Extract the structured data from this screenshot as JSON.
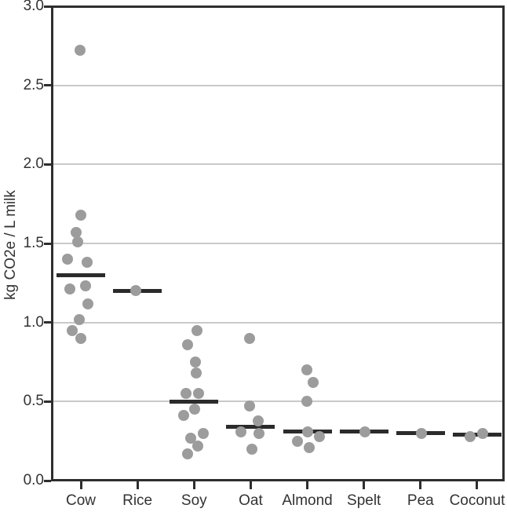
{
  "chart_data": {
    "type": "scatter",
    "subtype": "strip plot with median lines per category",
    "title": "",
    "xlabel": "",
    "ylabel": "kg CO2e / L milk",
    "ylim": [
      0.0,
      3.0
    ],
    "grid": "horizontal gridlines every 0.5, light gray",
    "legend": "none",
    "yticks": [
      {
        "v": 0.0,
        "label": "0.0"
      },
      {
        "v": 0.5,
        "label": "0.5"
      },
      {
        "v": 1.0,
        "label": "1.0"
      },
      {
        "v": 1.5,
        "label": "1.5"
      },
      {
        "v": 2.0,
        "label": "2.0"
      },
      {
        "v": 2.5,
        "label": "2.5"
      },
      {
        "v": 3.0,
        "label": "3.0"
      }
    ],
    "categories": [
      "Cow",
      "Rice",
      "Soy",
      "Oat",
      "Almond",
      "Spelt",
      "Pea",
      "Coconut"
    ],
    "series": [
      {
        "name": "Cow",
        "median": 1.3,
        "points": [
          {
            "v": 2.72,
            "dx": -1
          },
          {
            "v": 1.68,
            "dx": 0
          },
          {
            "v": 1.57,
            "dx": -6
          },
          {
            "v": 1.51,
            "dx": -4
          },
          {
            "v": 1.4,
            "dx": -17
          },
          {
            "v": 1.38,
            "dx": 8
          },
          {
            "v": 1.23,
            "dx": 6
          },
          {
            "v": 1.21,
            "dx": -14
          },
          {
            "v": 1.12,
            "dx": 9
          },
          {
            "v": 1.02,
            "dx": -2
          },
          {
            "v": 0.95,
            "dx": -11
          },
          {
            "v": 0.9,
            "dx": 0
          }
        ]
      },
      {
        "name": "Rice",
        "median": 1.2,
        "points": [
          {
            "v": 1.2,
            "dx": -2
          }
        ]
      },
      {
        "name": "Soy",
        "median": 0.5,
        "points": [
          {
            "v": 0.95,
            "dx": 4
          },
          {
            "v": 0.86,
            "dx": -8
          },
          {
            "v": 0.75,
            "dx": 2
          },
          {
            "v": 0.68,
            "dx": 3
          },
          {
            "v": 0.55,
            "dx": -10
          },
          {
            "v": 0.55,
            "dx": 6
          },
          {
            "v": 0.45,
            "dx": 1
          },
          {
            "v": 0.41,
            "dx": -13
          },
          {
            "v": 0.3,
            "dx": 12
          },
          {
            "v": 0.27,
            "dx": -4
          },
          {
            "v": 0.22,
            "dx": 5
          },
          {
            "v": 0.17,
            "dx": -8
          }
        ]
      },
      {
        "name": "Oat",
        "median": 0.34,
        "points": [
          {
            "v": 0.9,
            "dx": -1
          },
          {
            "v": 0.47,
            "dx": -1
          },
          {
            "v": 0.38,
            "dx": 10
          },
          {
            "v": 0.31,
            "dx": -12
          },
          {
            "v": 0.3,
            "dx": 11
          },
          {
            "v": 0.2,
            "dx": 2
          }
        ]
      },
      {
        "name": "Almond",
        "median": 0.31,
        "points": [
          {
            "v": 0.7,
            "dx": -1
          },
          {
            "v": 0.62,
            "dx": 7
          },
          {
            "v": 0.5,
            "dx": -1
          },
          {
            "v": 0.31,
            "dx": 0
          },
          {
            "v": 0.28,
            "dx": 15
          },
          {
            "v": 0.25,
            "dx": -13
          },
          {
            "v": 0.21,
            "dx": 2
          }
        ]
      },
      {
        "name": "Spelt",
        "median": 0.31,
        "points": [
          {
            "v": 0.31,
            "dx": 1
          }
        ]
      },
      {
        "name": "Pea",
        "median": 0.3,
        "points": [
          {
            "v": 0.3,
            "dx": 1
          }
        ]
      },
      {
        "name": "Coconut",
        "median": 0.29,
        "points": [
          {
            "v": 0.3,
            "dx": 7
          },
          {
            "v": 0.28,
            "dx": -9
          }
        ]
      }
    ],
    "colors": {
      "dot": "#9c9c9c",
      "median_line": "#2b2b2b",
      "gridline": "#c9c9c9",
      "axis": "#2e2e2e",
      "text": "#333333"
    }
  }
}
